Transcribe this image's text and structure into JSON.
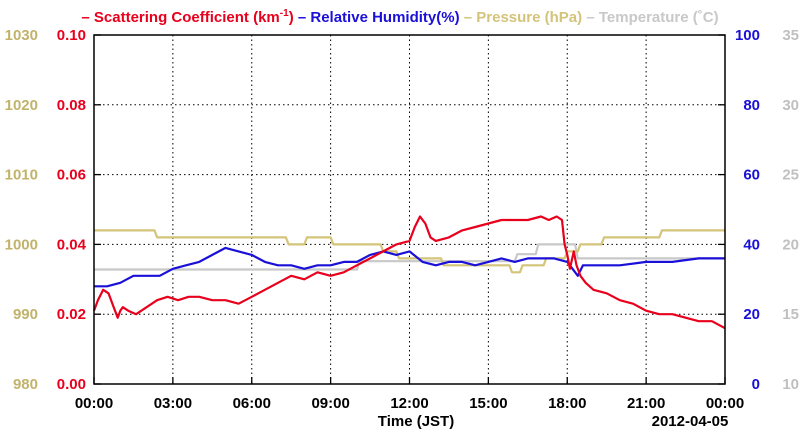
{
  "chart_data": {
    "type": "line",
    "legend": {
      "placement": "top",
      "entries": [
        {
          "dash": "–",
          "label": "Scattering Coefficient (km",
          "sup": "-1",
          "close": ")",
          "color": "#e8001c"
        },
        {
          "dash": "–",
          "label": "Relative Humidity(%)",
          "sup": "",
          "close": "",
          "color": "#1a10d8"
        },
        {
          "dash": "–",
          "label": "Pressure (hPa)",
          "sup": "",
          "close": "",
          "color": "#d4c47a"
        },
        {
          "dash": "–",
          "label": "Temperature (˚C)",
          "sup": "",
          "close": "",
          "color": "#c8c8c8"
        }
      ]
    },
    "xlabel": "Time (JST)",
    "date_label": "2012-04-05",
    "xlim": [
      0,
      24
    ],
    "x_ticks": [
      0,
      3,
      6,
      9,
      12,
      15,
      18,
      21,
      24
    ],
    "x_tick_labels": [
      "00:00",
      "03:00",
      "06:00",
      "09:00",
      "12:00",
      "15:00",
      "18:00",
      "21:00",
      "00:00"
    ],
    "grid": true,
    "axes": {
      "pressure": {
        "side": "left-outer",
        "range": [
          980,
          1030
        ],
        "ticks": [
          "980",
          "990",
          "1000",
          "1010",
          "1020",
          "1030"
        ],
        "color": "#c2b36a"
      },
      "scattering": {
        "side": "left-inner",
        "range": [
          0,
          0.1
        ],
        "ticks": [
          "0.00",
          "0.02",
          "0.04",
          "0.06",
          "0.08",
          "0.10"
        ],
        "color": "#e8001c"
      },
      "humidity": {
        "side": "right-inner",
        "range": [
          0,
          100
        ],
        "ticks": [
          "0",
          "20",
          "40",
          "60",
          "80",
          "100"
        ],
        "color": "#1a10d8"
      },
      "temperature": {
        "side": "right-outer",
        "range": [
          10,
          35
        ],
        "ticks": [
          "10",
          "15",
          "20",
          "25",
          "30",
          "35"
        ],
        "color": "#c0c0c0"
      }
    },
    "series": [
      {
        "name": "Scattering Coefficient (km-1)",
        "axis": "scattering",
        "color": "#e8001c",
        "x": [
          0,
          0.15,
          0.35,
          0.55,
          0.75,
          0.9,
          1.0,
          1.1,
          1.3,
          1.6,
          2.0,
          2.4,
          2.8,
          3.2,
          3.6,
          4.0,
          4.5,
          5.0,
          5.5,
          6.0,
          6.5,
          7.0,
          7.5,
          8.0,
          8.5,
          9.0,
          9.5,
          10.0,
          10.5,
          11.0,
          11.5,
          12.0,
          12.2,
          12.4,
          12.6,
          12.8,
          13.0,
          13.5,
          14.0,
          14.5,
          15.0,
          15.5,
          16.0,
          16.5,
          17.0,
          17.3,
          17.6,
          17.8,
          17.9,
          18.0,
          18.1,
          18.25,
          18.35,
          18.5,
          18.7,
          19.0,
          19.5,
          20.0,
          20.5,
          21.0,
          21.5,
          22.0,
          22.5,
          23.0,
          23.5,
          24.0
        ],
        "y": [
          0.021,
          0.024,
          0.027,
          0.026,
          0.022,
          0.019,
          0.021,
          0.022,
          0.021,
          0.02,
          0.022,
          0.024,
          0.025,
          0.024,
          0.025,
          0.025,
          0.024,
          0.024,
          0.023,
          0.025,
          0.027,
          0.029,
          0.031,
          0.03,
          0.032,
          0.031,
          0.032,
          0.034,
          0.036,
          0.038,
          0.04,
          0.041,
          0.045,
          0.048,
          0.046,
          0.042,
          0.041,
          0.042,
          0.044,
          0.045,
          0.046,
          0.047,
          0.047,
          0.047,
          0.048,
          0.047,
          0.048,
          0.047,
          0.04,
          0.037,
          0.033,
          0.038,
          0.034,
          0.031,
          0.029,
          0.027,
          0.026,
          0.024,
          0.023,
          0.021,
          0.02,
          0.02,
          0.019,
          0.018,
          0.018,
          0.016
        ]
      },
      {
        "name": "Relative Humidity(%)",
        "axis": "humidity",
        "color": "#1a10d8",
        "x": [
          0,
          0.5,
          1.0,
          1.5,
          2.0,
          2.5,
          3.0,
          3.5,
          4.0,
          4.5,
          5.0,
          5.5,
          6.0,
          6.5,
          7.0,
          7.5,
          8.0,
          8.5,
          9.0,
          9.5,
          10.0,
          10.5,
          11.0,
          11.5,
          12.0,
          12.5,
          13.0,
          13.5,
          14.0,
          14.5,
          15.0,
          15.5,
          16.0,
          16.5,
          17.0,
          17.5,
          18.0,
          18.2,
          18.4,
          18.6,
          18.8,
          19.0,
          19.5,
          20.0,
          21.0,
          22.0,
          23.0,
          24.0
        ],
        "y": [
          28,
          28,
          29,
          31,
          31,
          31,
          33,
          34,
          35,
          37,
          39,
          38,
          37,
          35,
          34,
          34,
          33,
          34,
          34,
          35,
          35,
          37,
          38,
          37,
          38,
          35,
          34,
          35,
          35,
          34,
          35,
          36,
          35,
          36,
          36,
          36,
          35,
          33,
          31,
          34,
          34,
          34,
          34,
          34,
          35,
          35,
          36,
          36
        ]
      },
      {
        "name": "Pressure (hPa)",
        "axis": "pressure",
        "color": "#d4c47a",
        "x": [
          0,
          2.3,
          2.4,
          5.7,
          5.8,
          7.3,
          7.4,
          8.0,
          8.1,
          9.0,
          9.1,
          10.3,
          10.4,
          10.9,
          11.0,
          11.5,
          11.6,
          13.2,
          13.3,
          15.8,
          15.9,
          16.2,
          16.3,
          17.1,
          17.2,
          17.9,
          18.0,
          18.4,
          18.5,
          19.3,
          19.4,
          20.6,
          20.7,
          21.5,
          21.6,
          24.0
        ],
        "y": [
          1002,
          1002,
          1001,
          1001,
          1001,
          1001,
          1000,
          1000,
          1001,
          1001,
          1000,
          1000,
          1000,
          1000,
          999,
          999,
          998,
          998,
          997,
          997,
          996,
          996,
          997,
          997,
          998,
          998,
          999,
          999,
          1000,
          1000,
          1001,
          1001,
          1001,
          1001,
          1002,
          1002
        ]
      },
      {
        "name": "Temperature (˚C)",
        "axis": "temperature",
        "color": "#c8c8c8",
        "x": [
          0,
          6.0,
          6.1,
          10.0,
          10.1,
          13.0,
          13.1,
          16.0,
          16.1,
          16.8,
          16.9,
          18.3,
          18.4,
          24.0
        ],
        "y": [
          18.2,
          18.2,
          18.2,
          18.2,
          18.8,
          18.8,
          18.8,
          18.8,
          19.3,
          19.3,
          20.0,
          20.0,
          19.0,
          19.0
        ]
      }
    ]
  }
}
